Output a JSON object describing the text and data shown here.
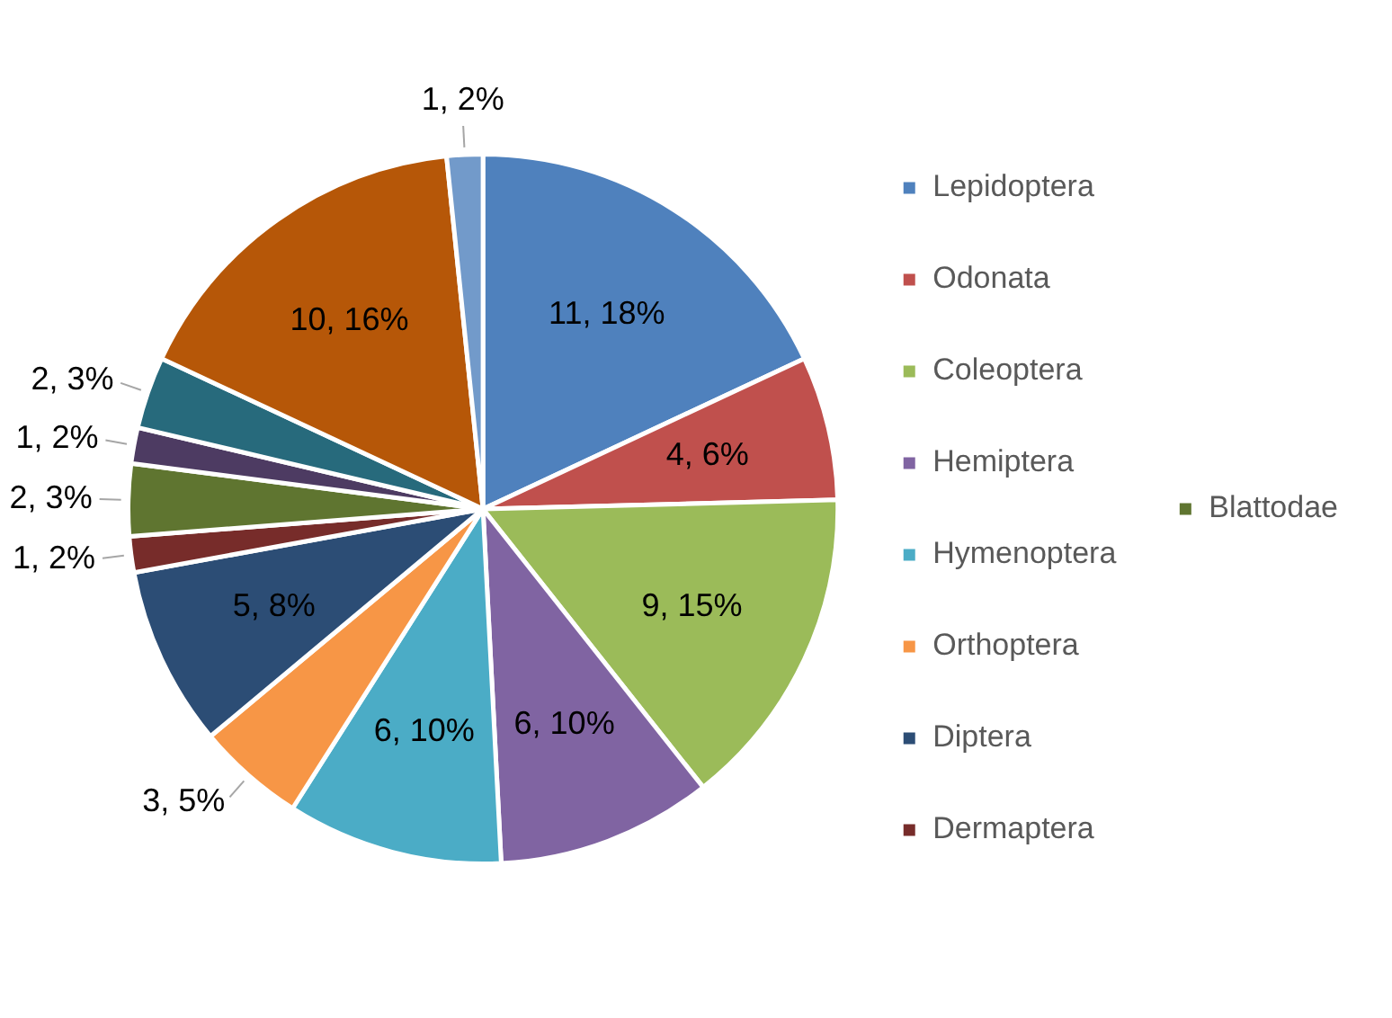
{
  "chart_data": {
    "type": "pie",
    "categories": [
      "Lepidoptera",
      "Odonata",
      "Coleoptera",
      "Hemiptera",
      "Hymenoptera",
      "Orthoptera",
      "Diptera",
      "Dermaptera",
      "Blattodae",
      null,
      null,
      null,
      null
    ],
    "values": [
      11,
      4,
      9,
      6,
      6,
      3,
      5,
      1,
      2,
      1,
      2,
      10,
      1
    ],
    "value_labels": [
      "11, 18%",
      "4, 6%",
      "9, 15%",
      "6, 10%",
      "6, 10%",
      "3, 5%",
      "5, 8%",
      "1, 2%",
      "2, 3%",
      "1, 2%",
      "2, 3%",
      "10, 16%",
      "1, 2%"
    ],
    "colors": [
      "#4f81bd",
      "#c0504d",
      "#9bbb59",
      "#8064a2",
      "#4bacc6",
      "#f79646",
      "#2c4d75",
      "#772c2a",
      "#5f7530",
      "#4d3b62",
      "#276a7c",
      "#b65708",
      "#729aca"
    ],
    "legend": "right"
  }
}
